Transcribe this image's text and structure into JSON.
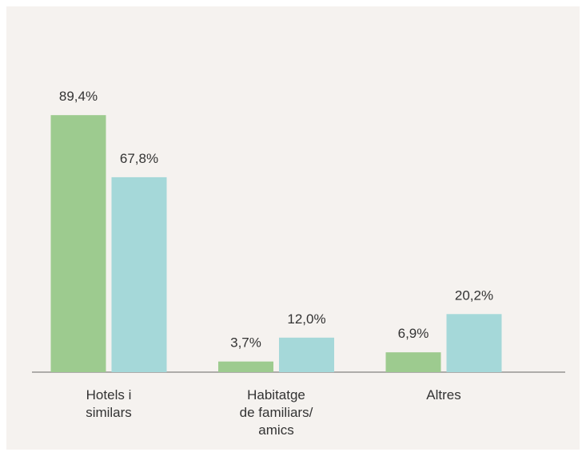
{
  "chart_data": {
    "type": "bar",
    "categories": [
      "Hotels i\nsimilars",
      "Habitatge\nde familiars/\namics",
      "Altres"
    ],
    "series": [
      {
        "color": "#9dcb8f",
        "values": [
          89.4,
          3.7,
          6.9
        ],
        "value_labels": [
          "89,4%",
          "3,7%",
          "6,9%"
        ]
      },
      {
        "color": "#a5d8d9",
        "values": [
          67.8,
          12.0,
          20.2
        ],
        "value_labels": [
          "67,8%",
          "12,0%",
          "20,2%"
        ]
      }
    ],
    "ylim": [
      0,
      100
    ]
  }
}
